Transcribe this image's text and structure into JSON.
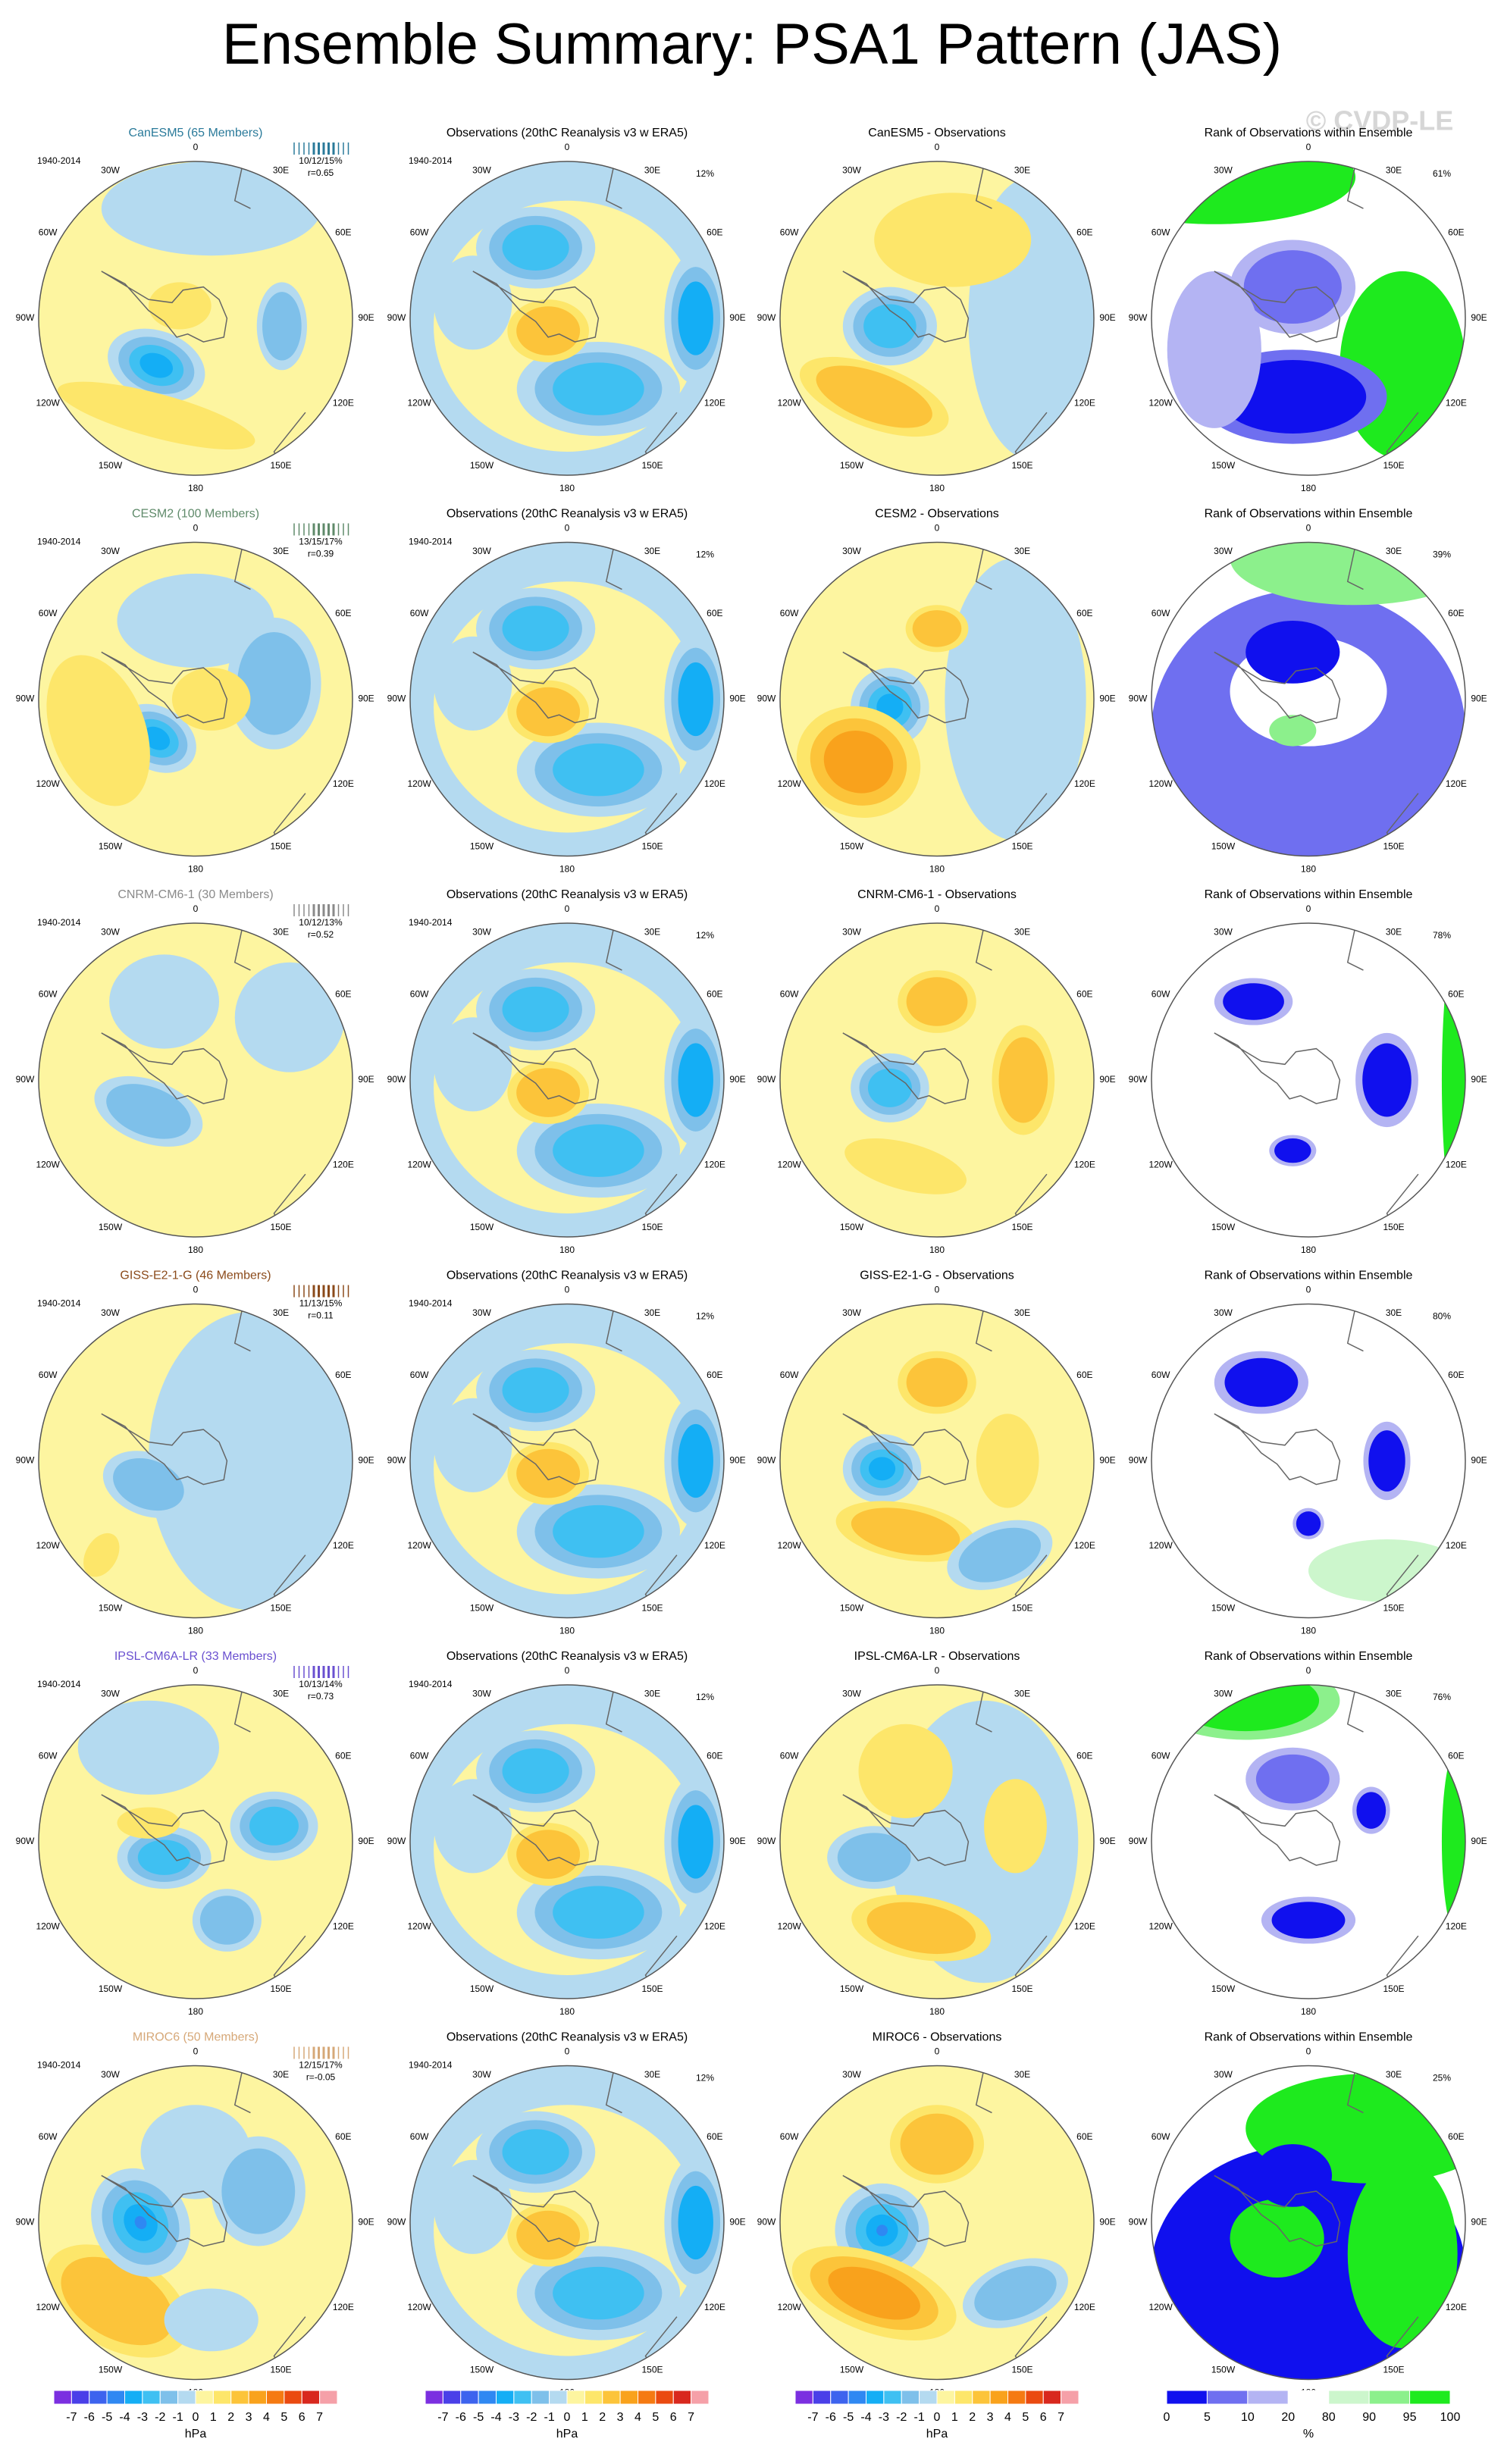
{
  "title": "Ensemble Summary: PSA1 Pattern (JAS)",
  "watermark": "© CVDP-LE",
  "longitude_labels": [
    "0",
    "30E",
    "60E",
    "90E",
    "120E",
    "150E",
    "180",
    "150W",
    "120W",
    "90W",
    "60W",
    "30W"
  ],
  "rows": [
    {
      "model_title": "CanESM5 (65 Members)",
      "model_color": "#2a7a9a",
      "model_period": "1940-2014",
      "model_stats": "10/12/15%",
      "model_r": "r=0.65",
      "obs_title": "Observations (20thC Reanalysis v3 w ERA5)",
      "obs_period": "1940-2014",
      "obs_pct": "12%",
      "diff_title": "CanESM5 - Observations",
      "rank_title": "Rank of Observations within Ensemble",
      "rank_pct": "61%"
    },
    {
      "model_title": "CESM2 (100 Members)",
      "model_color": "#5f8a6a",
      "model_period": "1940-2014",
      "model_stats": "13/15/17%",
      "model_r": "r=0.39",
      "obs_title": "Observations (20thC Reanalysis v3 w ERA5)",
      "obs_period": "1940-2014",
      "obs_pct": "12%",
      "diff_title": "CESM2 - Observations",
      "rank_title": "Rank of Observations within Ensemble",
      "rank_pct": "39%"
    },
    {
      "model_title": "CNRM-CM6-1 (30 Members)",
      "model_color": "#8a8a8a",
      "model_period": "1940-2014",
      "model_stats": "10/12/13%",
      "model_r": "r=0.52",
      "obs_title": "Observations (20thC Reanalysis v3 w ERA5)",
      "obs_period": "1940-2014",
      "obs_pct": "12%",
      "diff_title": "CNRM-CM6-1 - Observations",
      "rank_title": "Rank of Observations within Ensemble",
      "rank_pct": "78%"
    },
    {
      "model_title": "GISS-E2-1-G (46 Members)",
      "model_color": "#8b4a1a",
      "model_period": "1940-2014",
      "model_stats": "11/13/15%",
      "model_r": "r=0.11",
      "obs_title": "Observations (20thC Reanalysis v3 w ERA5)",
      "obs_period": "1940-2014",
      "obs_pct": "12%",
      "diff_title": "GISS-E2-1-G - Observations",
      "rank_title": "Rank of Observations within Ensemble",
      "rank_pct": "80%"
    },
    {
      "model_title": "IPSL-CM6A-LR (33 Members)",
      "model_color": "#6a50d0",
      "model_period": "1940-2014",
      "model_stats": "10/13/14%",
      "model_r": "r=0.73",
      "obs_title": "Observations (20thC Reanalysis v3 w ERA5)",
      "obs_period": "1940-2014",
      "obs_pct": "12%",
      "diff_title": "IPSL-CM6A-LR - Observations",
      "rank_title": "Rank of Observations within Ensemble",
      "rank_pct": "76%"
    },
    {
      "model_title": "MIROC6 (50 Members)",
      "model_color": "#d6a878",
      "model_period": "1940-2014",
      "model_stats": "12/15/17%",
      "model_r": "r=-0.05",
      "obs_title": "Observations (20thC Reanalysis v3 w ERA5)",
      "obs_period": "1940-2014",
      "obs_pct": "12%",
      "diff_title": "MIROC6 - Observations",
      "rank_title": "Rank of Observations within Ensemble",
      "rank_pct": "25%"
    }
  ],
  "colorbars": {
    "pressure": {
      "labels": [
        -7,
        -6,
        -5,
        -4,
        -3,
        -2,
        -1,
        0,
        1,
        2,
        3,
        4,
        5,
        6,
        7
      ],
      "colors": [
        "#7b2fe0",
        "#4a3fe8",
        "#3d63ee",
        "#2f88f2",
        "#14aef5",
        "#3fc0f2",
        "#7ec0ea",
        "#b4daf0",
        "#fdf5a0",
        "#fde66a",
        "#fcc43a",
        "#f9a21c",
        "#f57a12",
        "#ea4a10",
        "#d8281e",
        "#f5a0a8"
      ],
      "unit": "hPa"
    },
    "rank": {
      "labels": [
        0,
        5,
        10,
        20,
        80,
        90,
        95,
        100
      ],
      "colors": [
        "#1010ee",
        "#6f6ff0",
        "#b4b4f3",
        "#ffffff",
        "#ccf6cc",
        "#8cf08c",
        "#1eea1e"
      ],
      "unit": "%"
    }
  }
}
